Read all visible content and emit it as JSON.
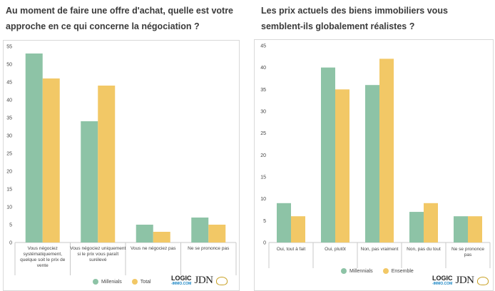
{
  "colors": {
    "millennials": "#8dc3a6",
    "total": "#f2c866",
    "axis": "#c8c8c8",
    "grid": "#e5e5e5"
  },
  "left": {
    "title": "Au moment de faire une offre d'achat, quelle est votre approche en ce qui concerne la négociation ?",
    "legend": [
      "Millenials",
      "Total"
    ],
    "logo_logic": "LOGIC",
    "logo_logic_sub": "-IMMO.COM",
    "logo_jdn": "JDN"
  },
  "right": {
    "title": "Les prix actuels des biens immobiliers vous semblent-ils globalement réalistes ?",
    "legend": [
      "Millennials",
      "Ensemble"
    ],
    "logo_logic": "LOGIC",
    "logo_logic_sub": "-IMMO.COM",
    "logo_jdn": "JDN"
  },
  "chart_data": [
    {
      "type": "bar",
      "title": "Au moment de faire une offre d'achat, quelle est votre approche en ce qui concerne la négociation ?",
      "categories": [
        [
          "Vous négociez",
          "systématiquement,",
          "quelque soit le prix de",
          "vente"
        ],
        [
          "Vous négociez uniquement",
          "si le prix vous paraît",
          "surélevé"
        ],
        [
          "Vous ne négociez pas"
        ],
        [
          "Ne se prononce pas"
        ]
      ],
      "series": [
        {
          "name": "Millenials",
          "values": [
            53,
            34,
            5,
            7
          ]
        },
        {
          "name": "Total",
          "values": [
            46,
            44,
            3,
            5
          ]
        }
      ],
      "ylim": [
        0,
        55
      ],
      "yticks": [
        0,
        5,
        10,
        15,
        20,
        25,
        30,
        35,
        40,
        45,
        50,
        55
      ],
      "grid": false,
      "legend_position": "bottom"
    },
    {
      "type": "bar",
      "title": "Les prix actuels des biens immobiliers vous semblent-ils globalement réalistes ?",
      "categories": [
        [
          "Oui, tout à fait"
        ],
        [
          "Oui, plutôt"
        ],
        [
          "Non, pas vraiment"
        ],
        [
          "Non, pas du tout"
        ],
        [
          "Ne se prononce",
          "pas"
        ]
      ],
      "series": [
        {
          "name": "Millennials",
          "values": [
            9,
            40,
            36,
            7,
            6
          ]
        },
        {
          "name": "Ensemble",
          "values": [
            6,
            35,
            42,
            9,
            6
          ]
        }
      ],
      "ylim": [
        0,
        45
      ],
      "yticks": [
        0,
        5,
        10,
        15,
        20,
        25,
        30,
        35,
        40,
        45
      ],
      "grid": false,
      "legend_position": "bottom"
    }
  ]
}
